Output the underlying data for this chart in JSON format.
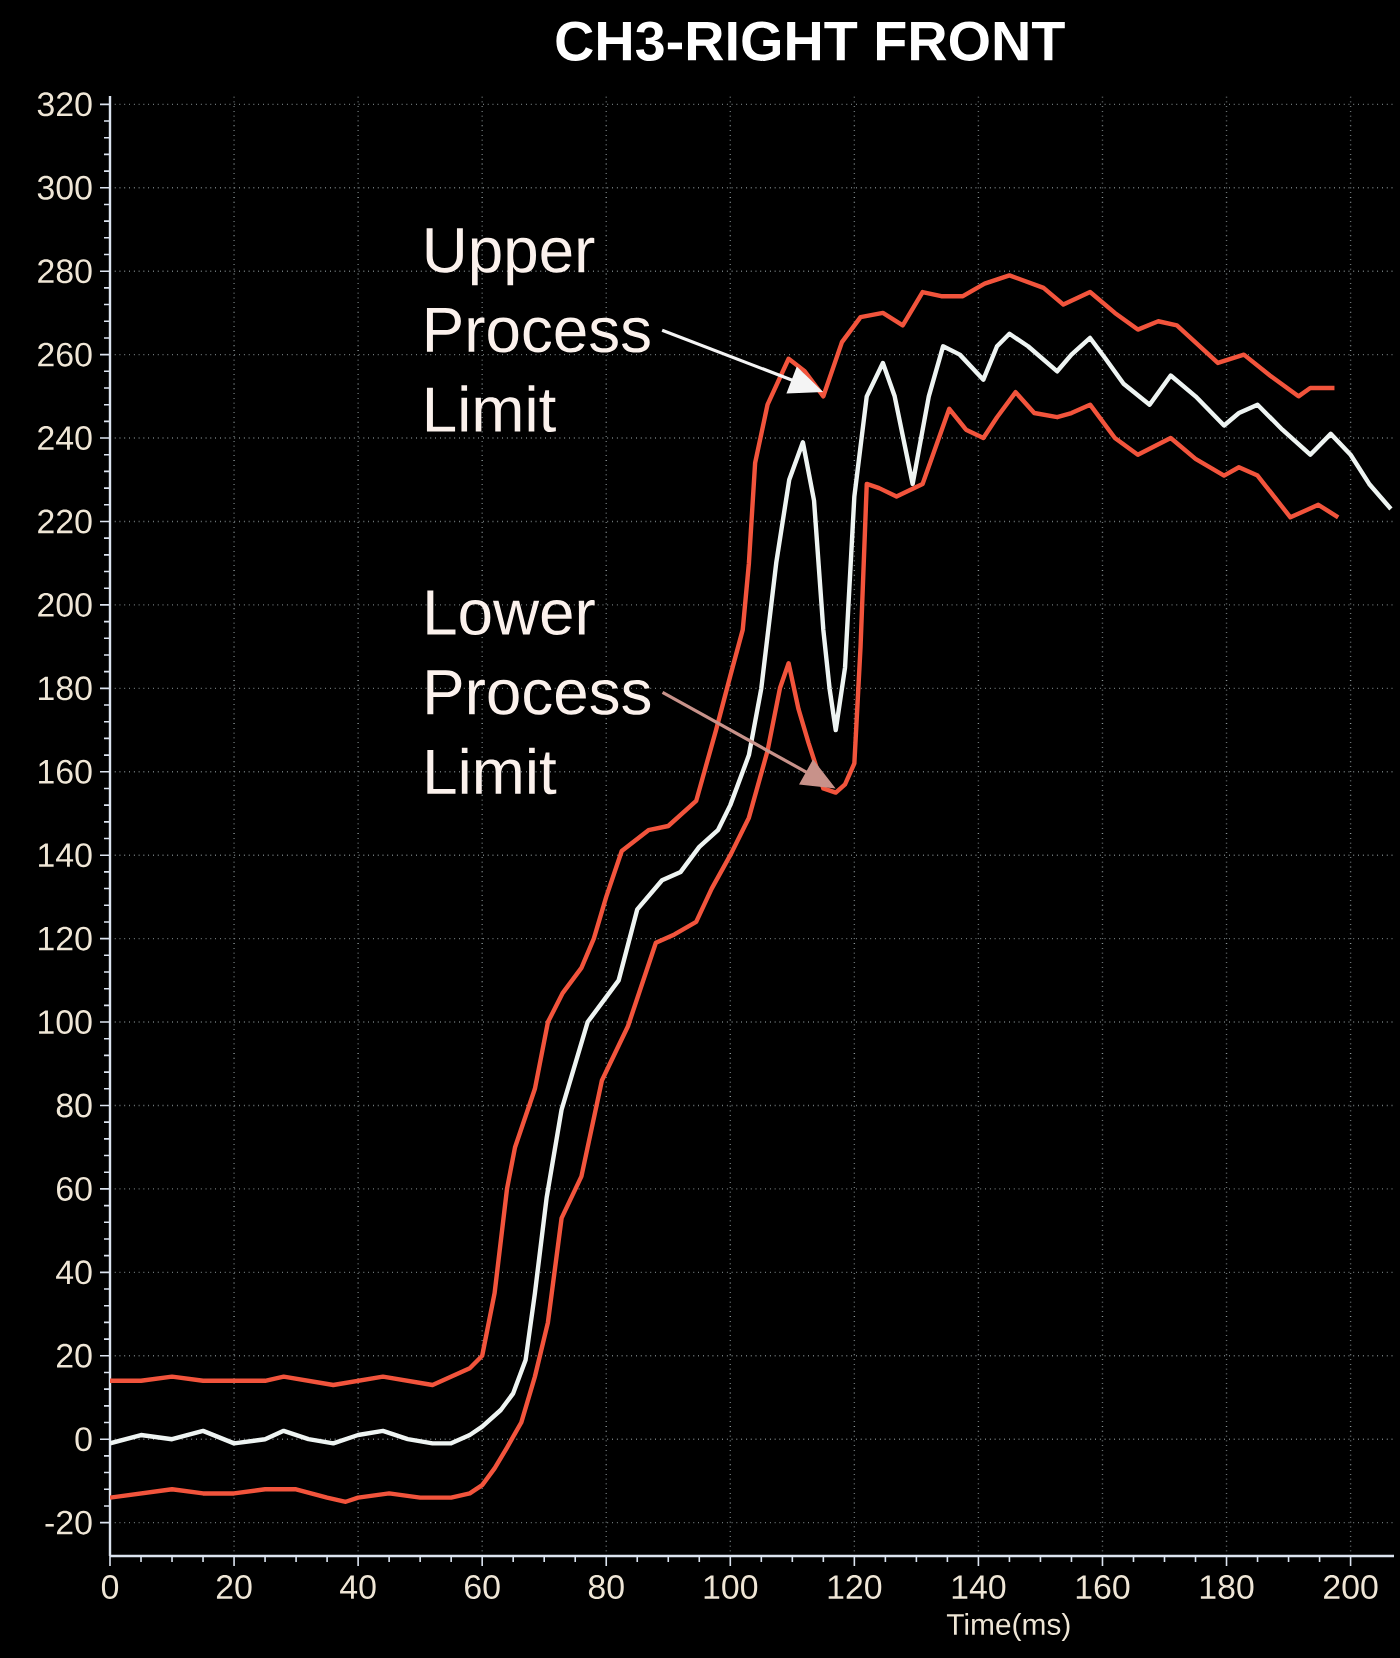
{
  "chart_data": {
    "type": "line",
    "title": "CH3-RIGHT FRONT",
    "xlabel": "Time(ms)",
    "xlim": [
      0,
      207
    ],
    "ylim": [
      -28,
      322
    ],
    "xticks": [
      0,
      20,
      40,
      60,
      80,
      100,
      120,
      140,
      160,
      180,
      200
    ],
    "yticks": [
      -20,
      0,
      20,
      40,
      60,
      80,
      100,
      120,
      140,
      160,
      180,
      200,
      220,
      240,
      260,
      280,
      300,
      320
    ],
    "grid": true,
    "marker": "none",
    "line_style": "solid",
    "annotations": [
      {
        "text": "Upper Process Limit",
        "x": 115,
        "y": 251
      },
      {
        "text": "Lower Process Limit",
        "x": 117,
        "y": 156
      }
    ],
    "series": [
      {
        "color": "#f2543c",
        "x": [
          0,
          5,
          10,
          15,
          20,
          25,
          28,
          32,
          36,
          40,
          44,
          48,
          52,
          55,
          58,
          60,
          62,
          64,
          65.3,
          68.5,
          70.6,
          73,
          76,
          78,
          80,
          82.5,
          86.8,
          90,
          94.5,
          97.7,
          100,
          102,
          103,
          104,
          106,
          109.4,
          112,
          115,
          118,
          121,
          124.6,
          127.8,
          131,
          134,
          137.5,
          141,
          145,
          150.5,
          153.7,
          158,
          162,
          165.7,
          169,
          172,
          178.6,
          182.8,
          187,
          191.6,
          193.5,
          197.4
        ],
        "values": [
          14,
          14,
          15,
          14,
          14,
          14,
          15,
          14,
          13,
          14,
          15,
          14,
          13,
          15,
          17,
          20,
          35,
          60,
          70,
          84,
          100,
          107,
          113,
          120,
          130,
          141,
          146,
          147,
          153,
          170,
          183,
          194,
          210,
          234,
          248,
          259,
          256,
          250,
          263,
          269,
          270,
          267,
          275,
          274,
          274,
          277,
          279,
          276,
          272,
          275,
          270,
          266,
          268,
          267,
          258,
          260,
          255,
          250,
          252,
          252
        ]
      },
      {
        "color": "#eef4f2",
        "x": [
          0,
          5,
          10,
          15,
          20,
          25,
          28,
          32,
          36,
          40,
          44,
          48,
          52,
          55,
          58,
          60,
          63,
          65,
          67,
          68.5,
          70.4,
          72.8,
          75,
          77,
          80,
          82,
          85,
          89,
          92,
          95,
          98,
          100,
          103,
          105,
          107.4,
          109.5,
          111.7,
          113.5,
          115,
          116,
          117,
          118.5,
          120,
          122,
          124.6,
          126.5,
          129.4,
          132,
          134.3,
          137,
          140.8,
          143,
          145,
          148,
          152.7,
          155,
          158,
          160.5,
          163.4,
          167.6,
          171,
          175,
          179.6,
          182,
          185,
          189,
          193.5,
          196.8,
          200,
          203,
          206.5
        ],
        "values": [
          -1,
          1,
          0,
          2,
          -1,
          0,
          2,
          0,
          -1,
          1,
          2,
          0,
          -1,
          -1,
          1,
          3,
          7,
          11,
          19,
          35,
          58,
          79,
          90,
          100,
          106,
          110,
          127,
          134,
          136,
          142,
          146,
          152,
          164,
          180,
          210,
          230,
          239,
          225,
          194,
          180,
          170,
          185,
          226,
          250,
          258,
          250,
          229,
          250,
          262,
          260,
          254,
          262,
          265,
          262,
          256,
          260,
          264,
          259,
          253,
          248,
          255,
          250,
          243,
          246,
          248,
          242,
          236,
          241,
          236,
          229,
          223
        ]
      },
      {
        "color": "#f2543c",
        "x": [
          0,
          5,
          10,
          15,
          20,
          25,
          30,
          35,
          38,
          40,
          45,
          50,
          55,
          58,
          60,
          62,
          64,
          66.3,
          68.5,
          70.6,
          72.8,
          76,
          79.3,
          83.5,
          88,
          91,
          94.5,
          97,
          100,
          103,
          106,
          108,
          109.4,
          111,
          112.6,
          115,
          117,
          118.5,
          120,
          121,
          122,
          124,
          126.8,
          131,
          135.3,
          138,
          140.8,
          143,
          146,
          149,
          152.7,
          155,
          158,
          162,
          165.7,
          171,
          175,
          179.6,
          182,
          185,
          190.3,
          194.8,
          198
        ],
        "values": [
          -14,
          -13,
          -12,
          -13,
          -13,
          -12,
          -12,
          -14,
          -15,
          -14,
          -13,
          -14,
          -14,
          -13,
          -11,
          -7,
          -2,
          4,
          15,
          28,
          53,
          63,
          86,
          99,
          119,
          121,
          124,
          132,
          140,
          149,
          165,
          180,
          186,
          175,
          167,
          156,
          155,
          157,
          162,
          190,
          229,
          228,
          226,
          229,
          247,
          242,
          240,
          245,
          251,
          246,
          245,
          246,
          248,
          240,
          236,
          240,
          235,
          231,
          233,
          231,
          221,
          224,
          221
        ]
      }
    ]
  }
}
